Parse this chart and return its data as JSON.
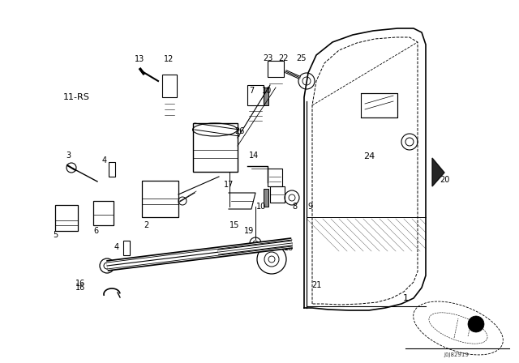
{
  "bg_color": "#ffffff",
  "line_color": "#000000",
  "fig_width": 6.4,
  "fig_height": 4.48,
  "dpi": 100,
  "watermark": "J0J82919"
}
